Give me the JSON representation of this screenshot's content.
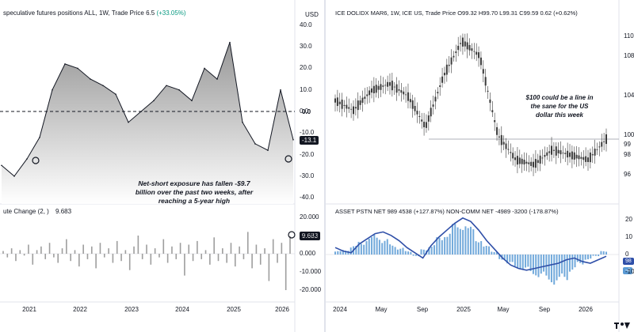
{
  "colors": {
    "line": "#131722",
    "area_top": "#8c8c8c",
    "area_bottom": "#ffffff",
    "bar_gray": "#9e9e9e",
    "bar_blue": "#5b9bd5",
    "line_blue": "#2f4fa8",
    "candle": "#3a3a3a",
    "grid": "#f0f3fa",
    "dash": "#131722"
  },
  "left": {
    "title": "speculative futures positions ALL, 1W, Trade Price  6.5",
    "title_change": "(+33.05%)",
    "currency": "USD",
    "lower_title": "ute Change (2, )",
    "lower_value": "9.683",
    "annotation": [
      "Net-short exposure has fallen -$9.7",
      "billion over the past two weeks, after",
      "reaching a 5-year high"
    ],
    "badge_zero": "0.0",
    "badge_last": "-13.1",
    "badge_lower": "9.683",
    "x_ticks": [
      "2021",
      "2022",
      "2023",
      "2024",
      "2025",
      "2026"
    ],
    "upper_y_ticks": [
      "40.0",
      "30.0",
      "20.0",
      "10.0",
      "0.0",
      "-10.0",
      "-20.0",
      "-30.0",
      "-40.0"
    ],
    "lower_y_ticks": [
      "20.000",
      "10.000",
      "0.000",
      "-10.000",
      "-20.000"
    ]
  },
  "right": {
    "title": "ICE DOLIDX MAR6, 1W, ICE US, Trade Price  O99.32  H99.70  L99.31  C99.59  0.62 (+0.62%)",
    "annotation": [
      "$100 could be a line in",
      "the sane for the US",
      "dollar this week"
    ],
    "upper_y_ticks": [
      "110",
      "108",
      "104",
      "100",
      "99",
      "98",
      "96"
    ],
    "lower_title": "ASSET PSTN NET   989   4538 (+127.87%)        NON-COMM NET   -4989   -3200 (-178.87%)",
    "lower_badges": [
      "98",
      "-4"
    ],
    "lower_y_ticks": [
      "20",
      "10",
      "0",
      "-10"
    ],
    "x_ticks": [
      "2024",
      "May",
      "Sep",
      "2025",
      "May",
      "Sep",
      "2026"
    ]
  },
  "chart_data": [
    {
      "type": "area",
      "title": "speculative futures positions ALL, 1W, Trade Price",
      "x": [
        "2020-07",
        "2020-10",
        "2021-01",
        "2021-04",
        "2021-07",
        "2021-10",
        "2022-01",
        "2022-04",
        "2022-07",
        "2022-10",
        "2023-01",
        "2023-04",
        "2023-07",
        "2023-10",
        "2024-01",
        "2024-04",
        "2024-07",
        "2024-10",
        "2025-01",
        "2025-04",
        "2025-07",
        "2025-10",
        "2026-01",
        "2026-02"
      ],
      "values": [
        -25,
        -30,
        -22,
        -12,
        10,
        22,
        20,
        15,
        12,
        8,
        -5,
        0,
        5,
        12,
        10,
        5,
        20,
        15,
        32,
        -5,
        -15,
        -18,
        10,
        -13.1
      ],
      "ylim": [
        -40,
        40
      ]
    },
    {
      "type": "bar",
      "title": "ute Change (2, )",
      "x_range": [
        "2020-07",
        "2026-02"
      ],
      "values": [
        1.5,
        -2,
        3,
        -4,
        2,
        -1,
        5,
        -6,
        2,
        4,
        -3,
        6,
        -2,
        -5,
        3,
        8,
        -4,
        2,
        -7,
        5,
        -3,
        4,
        -8,
        6,
        -2,
        3,
        -5,
        7,
        -4,
        2,
        -9,
        4,
        10,
        -3,
        5,
        -6,
        3,
        -2,
        8,
        -5,
        4,
        -3,
        6,
        -12,
        5,
        -4,
        7,
        -3,
        2,
        -6,
        9,
        -4,
        3,
        -5,
        6,
        -7,
        4,
        -3,
        12,
        -8,
        5,
        -6,
        3,
        -15,
        8,
        -5,
        6,
        -20,
        9.683
      ],
      "ylim": [
        -22,
        22
      ]
    },
    {
      "type": "line",
      "title": "ICE DOLIDX MAR6, 1W",
      "x": [
        "2023-11",
        "2024-01",
        "2024-03",
        "2024-05",
        "2024-07",
        "2024-09",
        "2024-11",
        "2025-01",
        "2025-02",
        "2025-04",
        "2025-06",
        "2025-08",
        "2025-10",
        "2025-12",
        "2026-01",
        "2026-02"
      ],
      "values": [
        103.5,
        102.5,
        104.5,
        105.2,
        104.0,
        100.8,
        106.0,
        109.5,
        108.0,
        100.0,
        97.5,
        97.0,
        98.5,
        98.0,
        97.5,
        99.59
      ],
      "ylim": [
        95,
        111
      ]
    },
    {
      "type": "bar",
      "title": "ASSET PSTN NET / NON-COMM NET",
      "series": [
        {
          "name": "ASSET PSTN NET",
          "values": [
            2,
            3,
            5,
            8,
            10,
            12,
            9,
            6,
            4,
            2,
            -1,
            3,
            6,
            10,
            14,
            18,
            20,
            16,
            10,
            5,
            2,
            -3,
            -6,
            -8,
            -10,
            -12,
            -14,
            -16,
            -18,
            -15,
            -10,
            -6,
            -3,
            -1,
            2
          ]
        },
        {
          "name": "NON-COMM NET",
          "values": [
            4,
            2,
            1,
            6,
            9,
            12,
            13,
            11,
            8,
            4,
            1,
            -2,
            5,
            10,
            14,
            18,
            21,
            19,
            14,
            8,
            3,
            -2,
            -6,
            -8,
            -9,
            -8,
            -7,
            -6,
            -5,
            -3,
            -2,
            -4,
            -5,
            -3,
            -1
          ]
        }
      ],
      "ylim": [
        -22,
        24
      ]
    }
  ]
}
